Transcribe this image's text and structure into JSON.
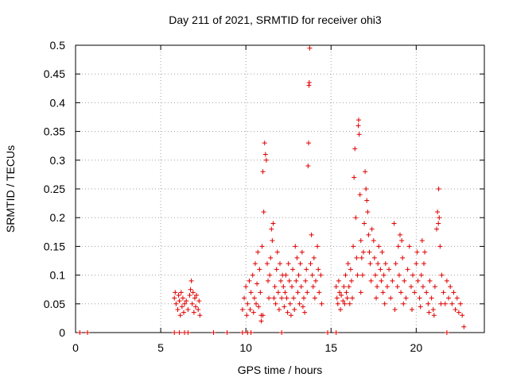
{
  "chart_data": {
    "type": "scatter",
    "title": "Day 211 of 2021, SRMTID for receiver ohi3",
    "xlabel": "GPS time / hours",
    "ylabel": "SRMTID / TECUs",
    "xlim": [
      0,
      24
    ],
    "ylim": [
      0,
      0.5
    ],
    "xticks": [
      0,
      5,
      10,
      15,
      20
    ],
    "yticks": [
      0,
      0.05,
      0.1,
      0.15,
      0.2,
      0.25,
      0.3,
      0.35,
      0.4,
      0.45,
      0.5
    ],
    "xtick_labels": [
      "0",
      "5",
      "10",
      "15",
      "20"
    ],
    "ytick_labels": [
      "0",
      "0.05",
      "0.1",
      "0.15",
      "0.2",
      "0.25",
      "0.3",
      "0.35",
      "0.4",
      "0.45",
      "0.5"
    ],
    "marker": "+",
    "color": "#e00000",
    "grid": true,
    "series": [
      {
        "name": "SRMTID",
        "points": [
          [
            0.25,
            0
          ],
          [
            0.7,
            0
          ],
          [
            5.8,
            0.06
          ],
          [
            5.85,
            0.07
          ],
          [
            5.9,
            0.05
          ],
          [
            6.0,
            0.04
          ],
          [
            6.05,
            0.065
          ],
          [
            6.1,
            0.055
          ],
          [
            6.2,
            0.07
          ],
          [
            6.25,
            0.045
          ],
          [
            6.3,
            0.06
          ],
          [
            6.35,
            0.035
          ],
          [
            6.4,
            0.05
          ],
          [
            6.5,
            0.055
          ],
          [
            6.6,
            0.04
          ],
          [
            6.7,
            0.065
          ],
          [
            6.8,
            0.09
          ],
          [
            6.85,
            0.05
          ],
          [
            6.9,
            0.07
          ],
          [
            6.95,
            0.035
          ],
          [
            7.0,
            0.06
          ],
          [
            7.05,
            0.045
          ],
          [
            7.1,
            0.065
          ],
          [
            7.2,
            0.04
          ],
          [
            7.25,
            0.055
          ],
          [
            7.3,
            0.03
          ],
          [
            6.75,
            0.075
          ],
          [
            6.15,
            0.03
          ],
          [
            5.8,
            0
          ],
          [
            6.1,
            0
          ],
          [
            6.4,
            0
          ],
          [
            6.6,
            0
          ],
          [
            8.1,
            0
          ],
          [
            8.9,
            0
          ],
          [
            9.8,
            0
          ],
          [
            10.1,
            0
          ],
          [
            10.3,
            0
          ],
          [
            12.1,
            0
          ],
          [
            14.8,
            0
          ],
          [
            15.3,
            0
          ],
          [
            21.8,
            0
          ],
          [
            9.8,
            0.04
          ],
          [
            9.9,
            0.06
          ],
          [
            10.0,
            0.08
          ],
          [
            10.05,
            0.03
          ],
          [
            10.1,
            0.05
          ],
          [
            10.2,
            0.09
          ],
          [
            10.25,
            0.04
          ],
          [
            10.3,
            0.07
          ],
          [
            10.4,
            0.1
          ],
          [
            10.45,
            0.035
          ],
          [
            10.5,
            0.06
          ],
          [
            10.55,
            0.12
          ],
          [
            10.6,
            0.05
          ],
          [
            10.65,
            0.085
          ],
          [
            10.7,
            0.14
          ],
          [
            10.75,
            0.045
          ],
          [
            10.8,
            0.11
          ],
          [
            10.85,
            0.07
          ],
          [
            10.9,
            0.03
          ],
          [
            10.95,
            0.15
          ],
          [
            11.0,
            0.28
          ],
          [
            11.05,
            0.21
          ],
          [
            11.1,
            0.33
          ],
          [
            11.15,
            0.31
          ],
          [
            11.2,
            0.3
          ],
          [
            11.25,
            0.12
          ],
          [
            11.3,
            0.09
          ],
          [
            11.35,
            0.06
          ],
          [
            11.4,
            0.1
          ],
          [
            11.45,
            0.13
          ],
          [
            11.5,
            0.18
          ],
          [
            11.55,
            0.16
          ],
          [
            11.6,
            0.19
          ],
          [
            11.7,
            0.08
          ],
          [
            11.75,
            0.05
          ],
          [
            11.8,
            0.11
          ],
          [
            11.85,
            0.14
          ],
          [
            11.9,
            0.07
          ],
          [
            11.95,
            0.04
          ],
          [
            12.0,
            0.12
          ],
          [
            12.05,
            0.09
          ],
          [
            12.1,
            0.06
          ],
          [
            12.15,
            0.1
          ],
          [
            12.2,
            0.08
          ],
          [
            12.3,
            0.07
          ],
          [
            12.35,
            0.1
          ],
          [
            12.4,
            0.06
          ],
          [
            12.5,
            0.12
          ],
          [
            12.55,
            0.09
          ],
          [
            12.6,
            0.05
          ],
          [
            12.7,
            0.08
          ],
          [
            12.75,
            0.11
          ],
          [
            12.8,
            0.06
          ],
          [
            12.9,
            0.15
          ],
          [
            12.95,
            0.09
          ],
          [
            13.0,
            0.13
          ],
          [
            13.05,
            0.07
          ],
          [
            13.1,
            0.1
          ],
          [
            13.2,
            0.12
          ],
          [
            13.25,
            0.08
          ],
          [
            13.3,
            0.14
          ],
          [
            13.4,
            0.06
          ],
          [
            13.5,
            0.09
          ],
          [
            13.55,
            0.11
          ],
          [
            13.6,
            0.07
          ],
          [
            13.65,
            0.29
          ],
          [
            13.68,
            0.33
          ],
          [
            13.7,
            0.43
          ],
          [
            13.72,
            0.435
          ],
          [
            13.75,
            0.495
          ],
          [
            13.8,
            0.12
          ],
          [
            13.85,
            0.17
          ],
          [
            13.9,
            0.1
          ],
          [
            13.95,
            0.08
          ],
          [
            14.0,
            0.13
          ],
          [
            14.05,
            0.06
          ],
          [
            14.1,
            0.09
          ],
          [
            14.2,
            0.15
          ],
          [
            14.25,
            0.11
          ],
          [
            14.3,
            0.07
          ],
          [
            14.4,
            0.1
          ],
          [
            14.45,
            0.05
          ],
          [
            12.25,
            0.045
          ],
          [
            12.45,
            0.035
          ],
          [
            12.65,
            0.03
          ],
          [
            12.85,
            0.04
          ],
          [
            13.15,
            0.05
          ],
          [
            13.35,
            0.045
          ],
          [
            13.45,
            0.035
          ],
          [
            11.65,
            0.06
          ],
          [
            10.9,
            0.02
          ],
          [
            11.0,
            0.03
          ],
          [
            15.3,
            0.08
          ],
          [
            15.35,
            0.06
          ],
          [
            15.4,
            0.05
          ],
          [
            15.45,
            0.09
          ],
          [
            15.5,
            0.07
          ],
          [
            15.55,
            0.04
          ],
          [
            15.6,
            0.065
          ],
          [
            15.7,
            0.055
          ],
          [
            15.75,
            0.08
          ],
          [
            15.8,
            0.05
          ],
          [
            15.85,
            0.1
          ],
          [
            15.9,
            0.07
          ],
          [
            15.95,
            0.06
          ],
          [
            16.0,
            0.12
          ],
          [
            16.05,
            0.08
          ],
          [
            16.1,
            0.05
          ],
          [
            16.15,
            0.11
          ],
          [
            16.2,
            0.09
          ],
          [
            16.3,
            0.15
          ],
          [
            16.35,
            0.27
          ],
          [
            16.4,
            0.32
          ],
          [
            16.45,
            0.2
          ],
          [
            16.5,
            0.13
          ],
          [
            16.55,
            0.1
          ],
          [
            16.6,
            0.36
          ],
          [
            16.62,
            0.37
          ],
          [
            16.65,
            0.345
          ],
          [
            16.7,
            0.24
          ],
          [
            16.75,
            0.16
          ],
          [
            16.8,
            0.13
          ],
          [
            16.85,
            0.1
          ],
          [
            16.9,
            0.14
          ],
          [
            16.95,
            0.19
          ],
          [
            17.0,
            0.28
          ],
          [
            17.05,
            0.25
          ],
          [
            17.1,
            0.23
          ],
          [
            17.15,
            0.21
          ],
          [
            17.2,
            0.17
          ],
          [
            17.25,
            0.14
          ],
          [
            17.3,
            0.12
          ],
          [
            17.35,
            0.09
          ],
          [
            17.4,
            0.18
          ],
          [
            17.5,
            0.16
          ],
          [
            17.55,
            0.13
          ],
          [
            17.6,
            0.1
          ],
          [
            17.7,
            0.08
          ],
          [
            17.75,
            0.12
          ],
          [
            17.8,
            0.15
          ],
          [
            17.9,
            0.11
          ],
          [
            17.95,
            0.09
          ],
          [
            18.0,
            0.14
          ],
          [
            18.05,
            0.07
          ],
          [
            18.1,
            0.1
          ],
          [
            18.2,
            0.12
          ],
          [
            18.3,
            0.08
          ],
          [
            18.4,
            0.11
          ],
          [
            18.5,
            0.06
          ],
          [
            18.6,
            0.09
          ],
          [
            18.7,
            0.19
          ],
          [
            18.8,
            0.12
          ],
          [
            18.9,
            0.08
          ],
          [
            19.0,
            0.1
          ],
          [
            19.1,
            0.07
          ],
          [
            19.2,
            0.13
          ],
          [
            19.3,
            0.09
          ],
          [
            19.4,
            0.06
          ],
          [
            19.5,
            0.11
          ],
          [
            19.6,
            0.15
          ],
          [
            19.7,
            0.08
          ],
          [
            19.8,
            0.1
          ],
          [
            19.9,
            0.07
          ],
          [
            20.0,
            0.12
          ],
          [
            20.1,
            0.09
          ],
          [
            20.2,
            0.06
          ],
          [
            20.3,
            0.1
          ],
          [
            20.4,
            0.08
          ],
          [
            20.5,
            0.14
          ],
          [
            20.6,
            0.07
          ],
          [
            20.7,
            0.05
          ],
          [
            20.8,
            0.09
          ],
          [
            20.9,
            0.06
          ],
          [
            21.0,
            0.04
          ],
          [
            21.1,
            0.08
          ],
          [
            21.2,
            0.18
          ],
          [
            21.25,
            0.21
          ],
          [
            21.3,
            0.19
          ],
          [
            21.32,
            0.25
          ],
          [
            21.35,
            0.2
          ],
          [
            21.4,
            0.15
          ],
          [
            21.5,
            0.1
          ],
          [
            21.6,
            0.07
          ],
          [
            21.7,
            0.05
          ],
          [
            21.8,
            0.09
          ],
          [
            21.9,
            0.06
          ],
          [
            22.0,
            0.08
          ],
          [
            22.1,
            0.05
          ],
          [
            22.2,
            0.07
          ],
          [
            22.3,
            0.04
          ],
          [
            22.4,
            0.06
          ],
          [
            22.5,
            0.035
          ],
          [
            22.6,
            0.05
          ],
          [
            22.7,
            0.03
          ],
          [
            22.8,
            0.01
          ],
          [
            16.25,
            0.06
          ],
          [
            16.75,
            0.07
          ],
          [
            17.65,
            0.06
          ],
          [
            18.15,
            0.05
          ],
          [
            18.75,
            0.04
          ],
          [
            19.25,
            0.05
          ],
          [
            19.75,
            0.04
          ],
          [
            20.25,
            0.045
          ],
          [
            20.75,
            0.035
          ],
          [
            21.05,
            0.03
          ],
          [
            21.45,
            0.05
          ],
          [
            19.05,
            0.17
          ],
          [
            19.15,
            0.16
          ],
          [
            18.95,
            0.15
          ],
          [
            20.05,
            0.14
          ],
          [
            20.35,
            0.16
          ],
          [
            20.45,
            0.12
          ]
        ]
      }
    ]
  }
}
